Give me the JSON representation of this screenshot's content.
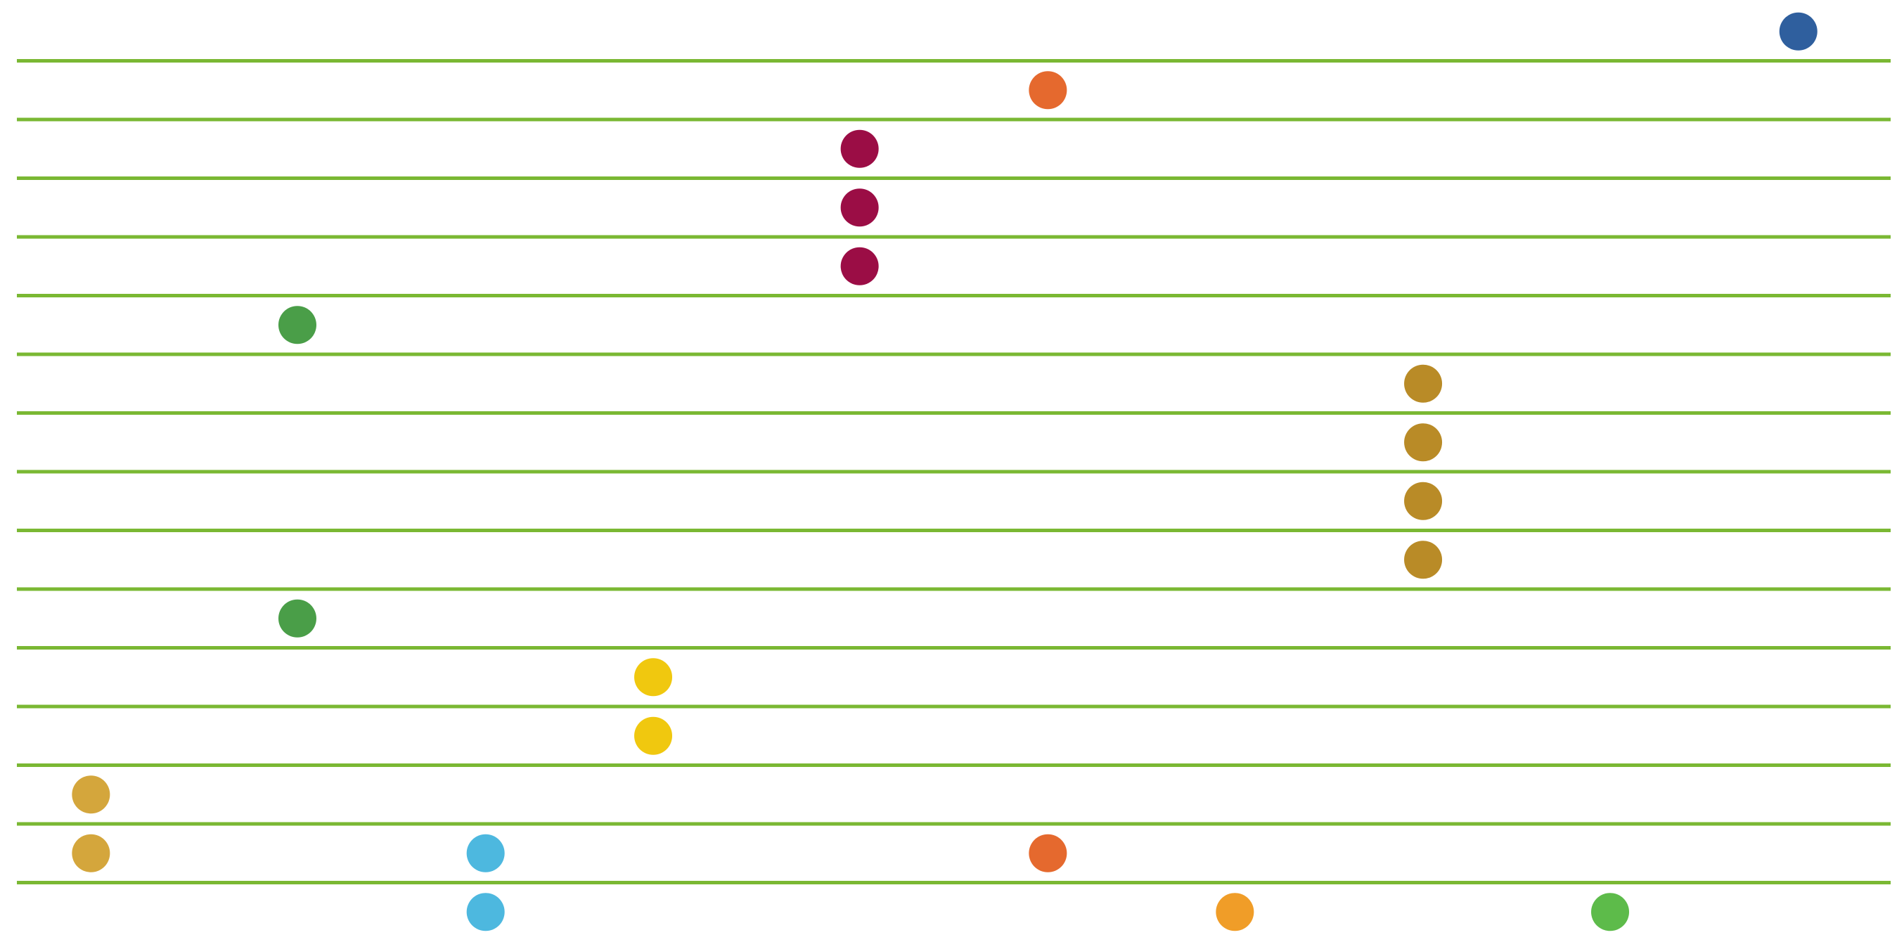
{
  "chart_data": {
    "type": "scatter",
    "x": [
      1467,
      849,
      694,
      694,
      694,
      231,
      1158,
      1158,
      1158,
      1158,
      231,
      524,
      524,
      61,
      61,
      386,
      849,
      386,
      1003,
      1312
    ],
    "y": [
      0.5,
      1.5,
      2.5,
      3.5,
      4.5,
      5.5,
      6.5,
      7.5,
      8.5,
      9.5,
      10.5,
      11.5,
      12.5,
      13.5,
      14.5,
      14.5,
      14.5,
      15.5,
      15.5,
      15.5
    ],
    "colors": [
      "#2f5f9e",
      "#e5692e",
      "#9b0d45",
      "#9b0d45",
      "#9b0d45",
      "#4a9e48",
      "#b98b27",
      "#b98b27",
      "#b98b27",
      "#b98b27",
      "#4a9e48",
      "#f0c80f",
      "#f0c80f",
      "#d4a63c",
      "#d4a63c",
      "#4db8df",
      "#e5692e",
      "#4db8df",
      "#f09d28",
      "#5dbb4a"
    ],
    "xlim": [
      0,
      1543
    ],
    "ylim": [
      0,
      16
    ],
    "yticks": [
      1,
      2,
      3,
      4,
      5,
      6,
      7,
      8,
      9,
      10,
      11,
      12,
      13,
      14,
      15
    ],
    "grid": true,
    "grid_color": "#7ab833"
  }
}
